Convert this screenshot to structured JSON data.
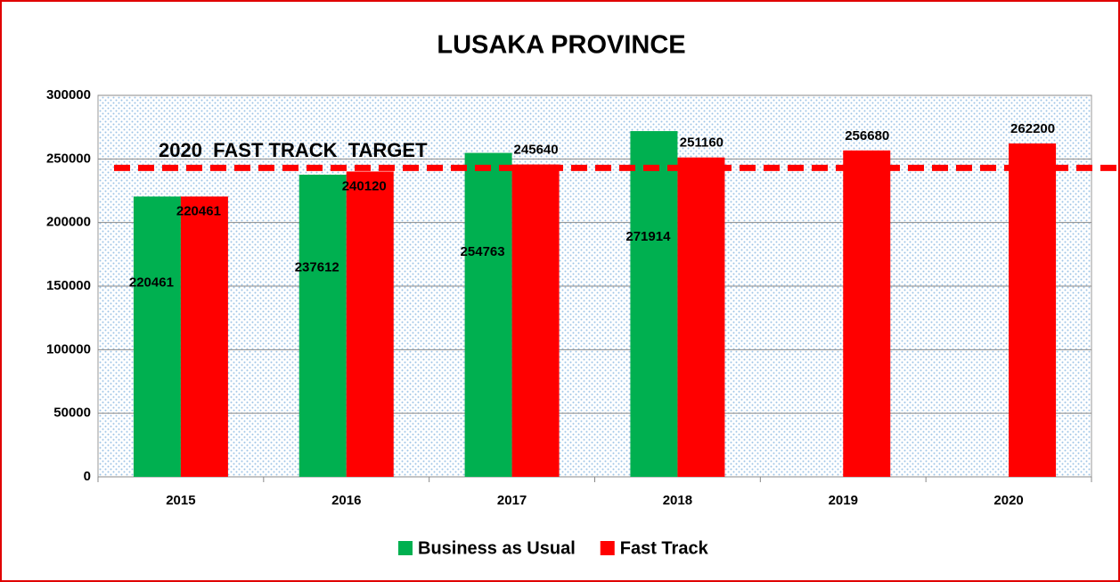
{
  "chart_data": {
    "type": "bar",
    "title": "LUSAKA PROVINCE",
    "categories": [
      "2015",
      "2016",
      "2017",
      "2018",
      "2019",
      "2020"
    ],
    "series": [
      {
        "name": "Business as Usual",
        "color": "#00b050",
        "values": [
          220461,
          237612,
          254763,
          271914,
          null,
          null
        ]
      },
      {
        "name": "Fast Track",
        "color": "#ff0000",
        "values": [
          220461,
          240120,
          245640,
          251160,
          256680,
          262200
        ]
      }
    ],
    "target_line": {
      "label": "2020  FAST TRACK  TARGET",
      "value": 243000,
      "color": "#ff0000"
    },
    "ylim": [
      0,
      300000
    ],
    "yticks": [
      0,
      50000,
      100000,
      150000,
      200000,
      250000,
      300000
    ],
    "grid": true,
    "legend": "bottom"
  }
}
